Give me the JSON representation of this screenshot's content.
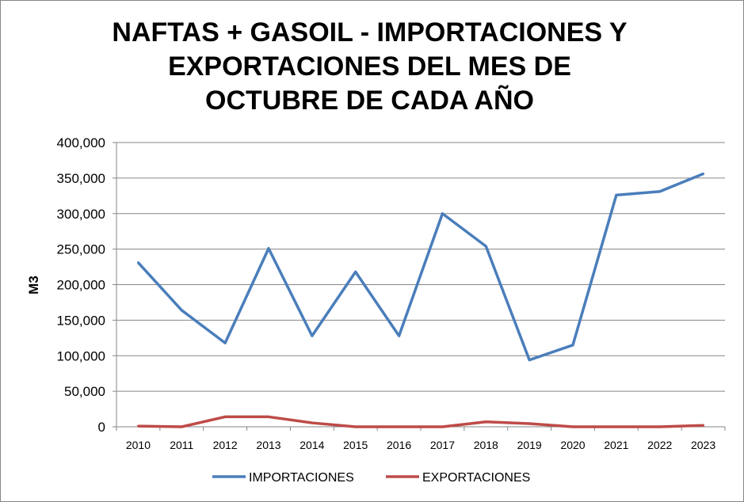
{
  "chart_data": {
    "type": "line",
    "title_lines": [
      "NAFTAS + GASOIL - IMPORTACIONES Y",
      "EXPORTACIONES DEL MES DE",
      "OCTUBRE DE CADA AÑO"
    ],
    "xlabel": "",
    "ylabel": "M3",
    "categories": [
      "2010",
      "2011",
      "2012",
      "2013",
      "2014",
      "2015",
      "2016",
      "2017",
      "2018",
      "2019",
      "2020",
      "2021",
      "2022",
      "2023"
    ],
    "ylim": [
      0,
      400000
    ],
    "yticks": [
      0,
      50000,
      100000,
      150000,
      200000,
      250000,
      300000,
      350000,
      400000
    ],
    "ytick_labels": [
      "0",
      "50,000",
      "100,000",
      "150,000",
      "200,000",
      "250,000",
      "300,000",
      "350,000",
      "400,000"
    ],
    "grid": true,
    "legend_position": "bottom",
    "series": [
      {
        "name": "IMPORTACIONES",
        "color": "#4A7EBB",
        "values": [
          231000,
          164000,
          118000,
          251000,
          128000,
          218000,
          128000,
          300000,
          254000,
          94000,
          115000,
          326000,
          331000,
          356000
        ]
      },
      {
        "name": "EXPORTACIONES",
        "color": "#BE4B48",
        "values": [
          1000,
          0,
          14000,
          14000,
          5500,
          0,
          0,
          0,
          7000,
          4500,
          0,
          0,
          0,
          2000
        ]
      }
    ]
  }
}
